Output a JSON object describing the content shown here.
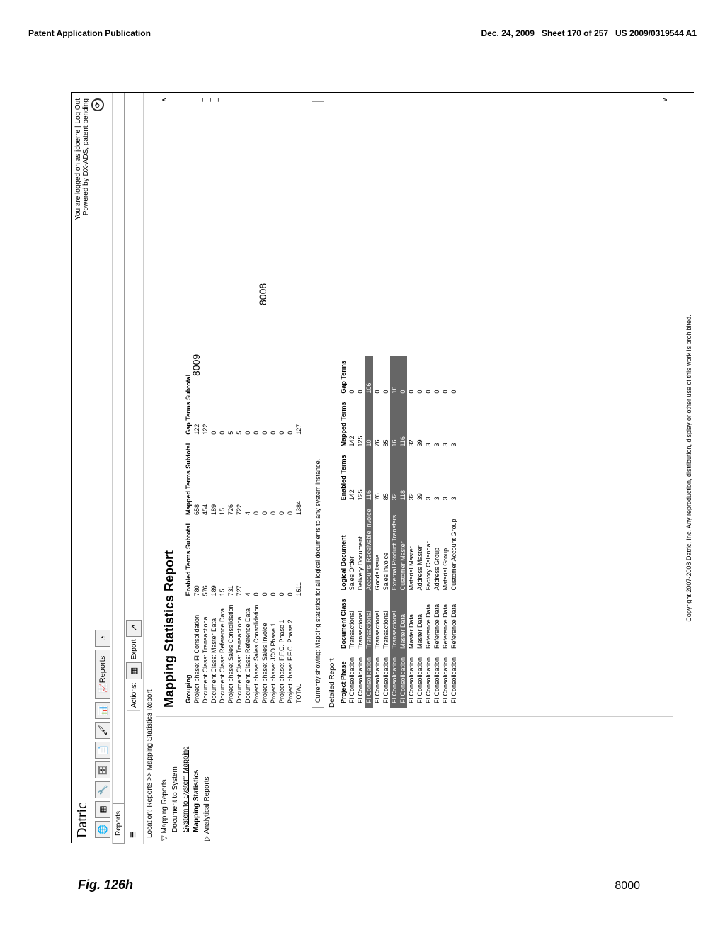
{
  "header": {
    "left": "Patent Application Publication",
    "rightDate": "Dec. 24, 2009",
    "rightSheet": "Sheet 170 of 257",
    "rightNum": "US 2009/0319544 A1"
  },
  "app": {
    "title": "Datric",
    "loginPrefix": "You are logged on as ",
    "user": "jdoerre",
    "logout": "Log Out",
    "powered": "Powered by DX-ADS, patent pending"
  },
  "toolbar": {
    "reportsTab": "Reports"
  },
  "nav": {
    "tabLabel": "Reports",
    "actions": "Actions:",
    "export": "Export"
  },
  "breadcrumb": "Location: Reports >> Mapping Statistics Report",
  "sidebar": {
    "items": [
      {
        "label": "Mapping Reports",
        "parent": true,
        "expanded": true
      },
      {
        "label": "Document to System",
        "link": true
      },
      {
        "label": "System to System Mapping",
        "link": true
      },
      {
        "label": "Mapping Statistics",
        "selected": true
      },
      {
        "label": "Analytical Reports",
        "parent": true,
        "expanded": false
      }
    ]
  },
  "report": {
    "title": "Mapping Statistics Report",
    "headers": [
      "Grouping",
      "Enabled Terms Subtotal",
      "Mapped Terms Subtotal",
      "Gap Terms Subtotal"
    ],
    "rows": [
      [
        "Project phase: FI Consolidation",
        "780",
        "658",
        "122"
      ],
      [
        "Document Class: Transactional",
        "576",
        "454",
        "122"
      ],
      [
        "Document Class: Master Data",
        "189",
        "189",
        "0"
      ],
      [
        "Document Class: Reference Data",
        "15",
        "15",
        "0"
      ],
      [
        "Project phase: Sales Consolidation",
        "731",
        "726",
        "5"
      ],
      [
        "Document Class: Transactional",
        "727",
        "722",
        "5"
      ],
      [
        "Document Class: Reference Data",
        "4",
        "4",
        "0"
      ],
      [
        "Project phase: Sales Consolidation",
        "0",
        "0",
        "0"
      ],
      [
        "Project phase: Sales Invoice",
        "0",
        "0",
        "0"
      ],
      [
        "Project phase: JCO Phase 1",
        "0",
        "0",
        "0"
      ],
      [
        "Project phase: F.F.C. Phase 1",
        "0",
        "0",
        "0"
      ],
      [
        "Project phase: F.F.C. Phase 2",
        "0",
        "0",
        "0"
      ],
      [
        "TOTAL",
        "1511",
        "1384",
        "127"
      ]
    ]
  },
  "statusMsg": "Currently showing: Mapping statistics for all logical documents to any system instance.",
  "detailed": {
    "label": "Detailed Report",
    "headers": [
      "Project Phase",
      "Document Class",
      "Logical Document",
      "Enabled Terms",
      "Mapped Terms",
      "Gap Terms"
    ],
    "rows": [
      {
        "cells": [
          "FI Consolidation",
          "Transactional",
          "Sales Order",
          "142",
          "142",
          "0"
        ],
        "h": false
      },
      {
        "cells": [
          "FI Consolidation",
          "Transactional",
          "Delivery Document",
          "125",
          "125",
          "0"
        ],
        "h": false
      },
      {
        "cells": [
          "FI Consolidation",
          "Transactional",
          "Accounts Receivable Invoice",
          "116",
          "10",
          "106"
        ],
        "h": true
      },
      {
        "cells": [
          "FI Consolidation",
          "Transactional",
          "Goods Issue",
          "76",
          "76",
          "0"
        ],
        "h": false
      },
      {
        "cells": [
          "FI Consolidation",
          "Transactional",
          "Sales Invoice",
          "85",
          "85",
          "0"
        ],
        "h": false
      },
      {
        "cells": [
          "FI Consolidation",
          "Transactional",
          "External Product Transfers",
          "32",
          "16",
          "16"
        ],
        "h": true
      },
      {
        "cells": [
          "FI Consolidation",
          "Master Data",
          "Customer Master",
          "118",
          "116",
          "0"
        ],
        "h": true
      },
      {
        "cells": [
          "FI Consolidation",
          "Master Data",
          "Material Master",
          "32",
          "32",
          "0"
        ],
        "h": false
      },
      {
        "cells": [
          "FI Consolidation",
          "Master Data",
          "Address Master",
          "39",
          "39",
          "0"
        ],
        "h": false
      },
      {
        "cells": [
          "FI Consolidation",
          "Reference Data",
          "Factory Calendar",
          "3",
          "3",
          "0"
        ],
        "h": false
      },
      {
        "cells": [
          "FI Consolidation",
          "Reference Data",
          "Address Group",
          "3",
          "3",
          "0"
        ],
        "h": false
      },
      {
        "cells": [
          "FI Consolidation",
          "Reference Data",
          "Material Group",
          "3",
          "3",
          "0"
        ],
        "h": false
      },
      {
        "cells": [
          "FI Consolidation",
          "Reference Data",
          "Customer Account Group",
          "3",
          "3",
          "0"
        ],
        "h": false
      }
    ]
  },
  "copyright": "Copyright 2007-2008 Datric, Inc. Any reproduction, distribution, display or other use of this work is prohibited.",
  "callouts": {
    "ref8009": "8009",
    "ref8008": "8008"
  },
  "fig": {
    "label": "Fig. 126h",
    "num": "8000"
  }
}
